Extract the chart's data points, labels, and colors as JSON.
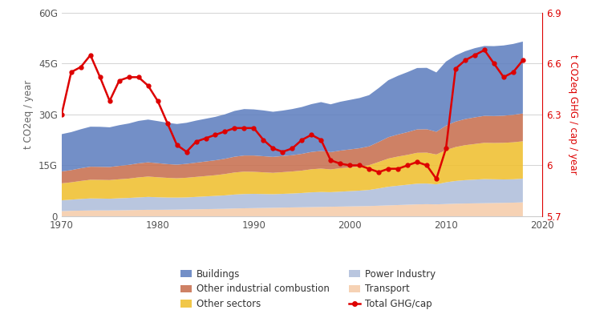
{
  "years": [
    1970,
    1971,
    1972,
    1973,
    1974,
    1975,
    1976,
    1977,
    1978,
    1979,
    1980,
    1981,
    1982,
    1983,
    1984,
    1985,
    1986,
    1987,
    1988,
    1989,
    1990,
    1991,
    1992,
    1993,
    1994,
    1995,
    1996,
    1997,
    1998,
    1999,
    2000,
    2001,
    2002,
    2003,
    2004,
    2005,
    2006,
    2007,
    2008,
    2009,
    2010,
    2011,
    2012,
    2013,
    2014,
    2015,
    2016,
    2017,
    2018
  ],
  "transport": [
    1.5,
    1.6,
    1.65,
    1.7,
    1.72,
    1.72,
    1.75,
    1.8,
    1.85,
    1.9,
    1.9,
    1.92,
    1.95,
    2.0,
    2.05,
    2.1,
    2.15,
    2.2,
    2.3,
    2.35,
    2.4,
    2.45,
    2.5,
    2.55,
    2.6,
    2.65,
    2.7,
    2.75,
    2.8,
    2.85,
    2.9,
    2.95,
    3.0,
    3.1,
    3.2,
    3.3,
    3.4,
    3.5,
    3.55,
    3.5,
    3.6,
    3.7,
    3.75,
    3.8,
    3.85,
    3.9,
    3.95,
    4.0,
    4.1
  ],
  "power_industry": [
    3.2,
    3.3,
    3.45,
    3.55,
    3.5,
    3.45,
    3.55,
    3.6,
    3.7,
    3.8,
    3.7,
    3.6,
    3.55,
    3.55,
    3.65,
    3.75,
    3.85,
    3.95,
    4.1,
    4.2,
    4.2,
    4.1,
    4.0,
    4.05,
    4.1,
    4.2,
    4.35,
    4.4,
    4.3,
    4.4,
    4.5,
    4.6,
    4.75,
    5.1,
    5.5,
    5.7,
    5.9,
    6.1,
    6.1,
    5.9,
    6.4,
    6.7,
    6.9,
    7.0,
    7.1,
    7.0,
    6.9,
    6.9,
    7.0
  ],
  "other_sectors": [
    5.0,
    5.1,
    5.3,
    5.5,
    5.5,
    5.5,
    5.6,
    5.7,
    5.9,
    6.0,
    5.9,
    5.8,
    5.7,
    5.8,
    5.9,
    6.0,
    6.1,
    6.3,
    6.5,
    6.6,
    6.5,
    6.4,
    6.3,
    6.4,
    6.5,
    6.6,
    6.8,
    6.9,
    6.7,
    6.9,
    7.0,
    7.1,
    7.3,
    7.8,
    8.3,
    8.6,
    8.8,
    9.1,
    9.1,
    8.8,
    9.5,
    10.0,
    10.3,
    10.5,
    10.7,
    10.7,
    10.8,
    10.9,
    11.0
  ],
  "other_industrial": [
    3.5,
    3.6,
    3.75,
    3.85,
    3.85,
    3.85,
    3.95,
    4.05,
    4.15,
    4.2,
    4.15,
    4.05,
    4.0,
    4.1,
    4.2,
    4.3,
    4.4,
    4.5,
    4.65,
    4.75,
    4.8,
    4.75,
    4.7,
    4.75,
    4.8,
    4.95,
    5.1,
    5.2,
    5.1,
    5.2,
    5.3,
    5.4,
    5.55,
    5.9,
    6.3,
    6.5,
    6.7,
    6.9,
    6.9,
    6.7,
    7.2,
    7.5,
    7.7,
    7.85,
    7.95,
    7.95,
    8.0,
    8.1,
    8.2
  ],
  "buildings": [
    11.0,
    11.2,
    11.5,
    11.8,
    11.8,
    11.7,
    12.0,
    12.2,
    12.5,
    12.6,
    12.4,
    12.2,
    12.0,
    12.1,
    12.4,
    12.6,
    12.8,
    13.1,
    13.5,
    13.7,
    13.6,
    13.5,
    13.3,
    13.4,
    13.6,
    13.8,
    14.1,
    14.4,
    14.1,
    14.4,
    14.6,
    14.8,
    15.1,
    15.9,
    16.8,
    17.3,
    17.7,
    18.1,
    18.1,
    17.5,
    18.9,
    19.5,
    20.0,
    20.4,
    20.6,
    20.6,
    20.7,
    20.9,
    21.2
  ],
  "ghg_per_cap": [
    6.3,
    6.55,
    6.58,
    6.65,
    6.52,
    6.38,
    6.5,
    6.52,
    6.52,
    6.47,
    6.38,
    6.25,
    6.12,
    6.08,
    6.14,
    6.16,
    6.18,
    6.2,
    6.22,
    6.22,
    6.22,
    6.15,
    6.1,
    6.08,
    6.1,
    6.15,
    6.18,
    6.15,
    6.03,
    6.01,
    6.0,
    6.0,
    5.98,
    5.96,
    5.98,
    5.98,
    6.0,
    6.02,
    6.0,
    5.92,
    6.1,
    6.57,
    6.62,
    6.65,
    6.68,
    6.6,
    6.52,
    6.55,
    6.62
  ],
  "color_transport": "#f5ccaa",
  "color_power_industry": "#b0bfdb",
  "color_other_sectors": "#f0c030",
  "color_other_industrial": "#c87050",
  "color_buildings": "#6080c0",
  "color_ghg_line": "#dd0000",
  "ylabel_left": "t CO2eq / year",
  "ylabel_right": "t CO2eq GHG / cap / year",
  "ylim_left": [
    0,
    60
  ],
  "ylim_right": [
    5.7,
    6.9
  ],
  "yticks_left": [
    0,
    15,
    30,
    45,
    60
  ],
  "ytick_labels_left": [
    "0",
    "15G",
    "30G",
    "45G",
    "60G"
  ],
  "yticks_right": [
    5.7,
    6.0,
    6.3,
    6.6,
    6.9
  ],
  "ytick_labels_right": [
    "5.7",
    "6",
    "6.3",
    "6.6",
    "6.9"
  ],
  "xticks": [
    1970,
    1980,
    1990,
    2000,
    2010,
    2020
  ],
  "background_color": "#ffffff"
}
